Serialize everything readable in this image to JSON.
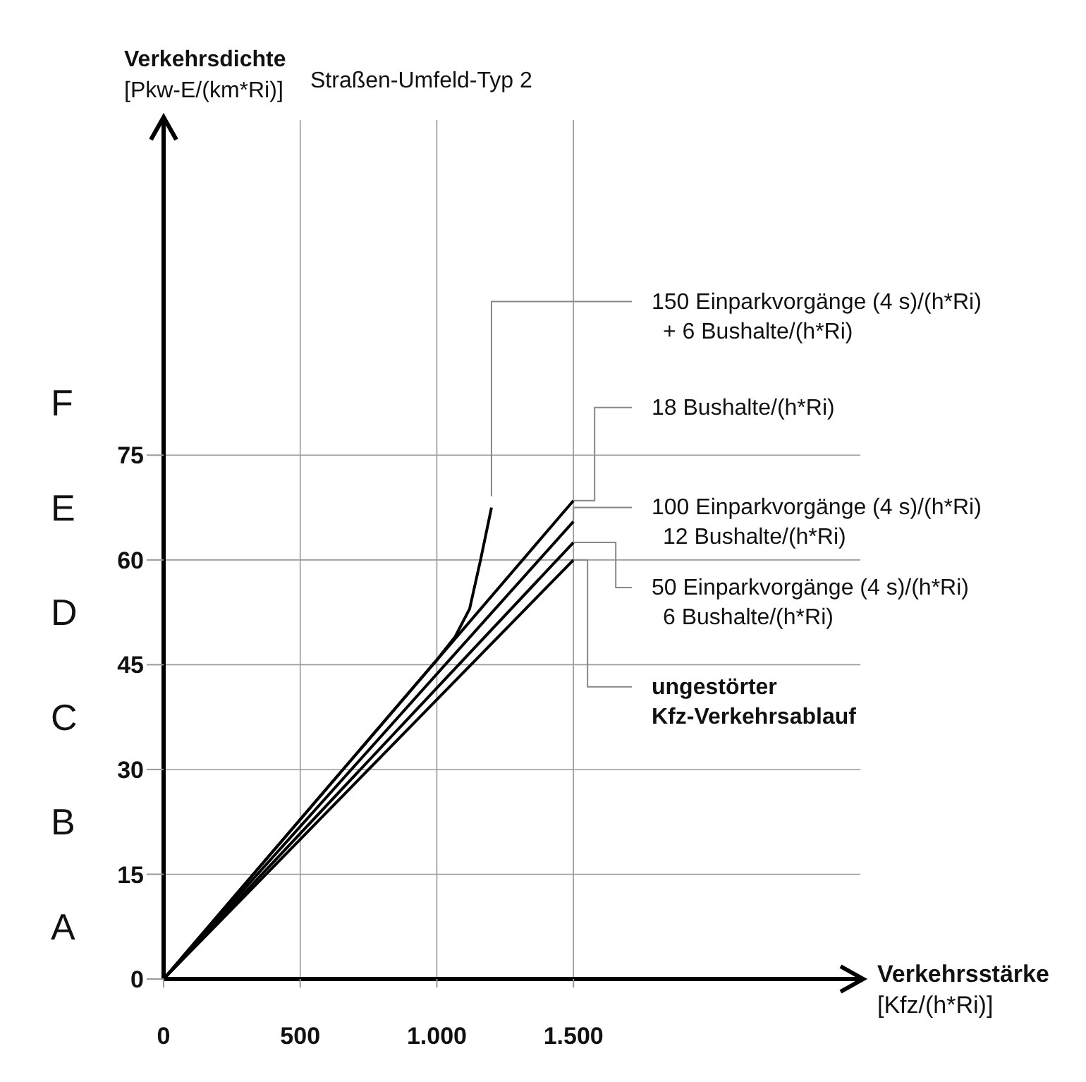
{
  "chart_data": {
    "type": "line",
    "title": "Straßen-Umfeld-Typ 2",
    "xlabel": "Verkehrsstärke\n[Kfz/(h*Ri)]",
    "ylabel": "Verkehrsdichte\n[Pkw-E/(km*Ri)]",
    "xlim": [
      0,
      2550
    ],
    "ylim": [
      0,
      123
    ],
    "xticks": [
      0,
      500,
      {
        "value": 1000,
        "label": "1.000"
      },
      {
        "value": 1500,
        "label": "1.500"
      }
    ],
    "yticks": [
      0,
      15,
      30,
      45,
      60,
      75
    ],
    "grid": true,
    "marker": "none",
    "line_style": "solid",
    "series": [
      {
        "name": "150 Einparkvorgänge (4 s)/(h*Ri)\n+ 6 Bushalte/(h*Ri)",
        "color": "#000000",
        "x": [
          0,
          1000,
          1067,
          1120,
          1160,
          1200
        ],
        "values": [
          0,
          45.7,
          49,
          53,
          60,
          67.5
        ]
      },
      {
        "name": "18 Bushalte/(h*Ri)",
        "color": "#000000",
        "x": [
          0,
          1500
        ],
        "values": [
          0,
          68.5
        ]
      },
      {
        "name": "100 Einparkvorgänge (4 s)/(h*Ri)\n12 Bushalte/(h*Ri)",
        "color": "#000000",
        "x": [
          0,
          1500
        ],
        "values": [
          0,
          65.5
        ]
      },
      {
        "name": "50 Einparkvorgänge (4 s)/(h*Ri)\n6 Bushalte/(h*Ri)",
        "color": "#000000",
        "x": [
          0,
          1500
        ],
        "values": [
          0,
          62.5
        ]
      },
      {
        "name": "ungestörter\nKfz-Verkehrsablauf",
        "color": "#000000",
        "x": [
          0,
          1500
        ],
        "values": [
          0,
          60
        ]
      }
    ],
    "annotations": [
      "A",
      "B",
      "C",
      "D",
      "E",
      "F"
    ]
  }
}
